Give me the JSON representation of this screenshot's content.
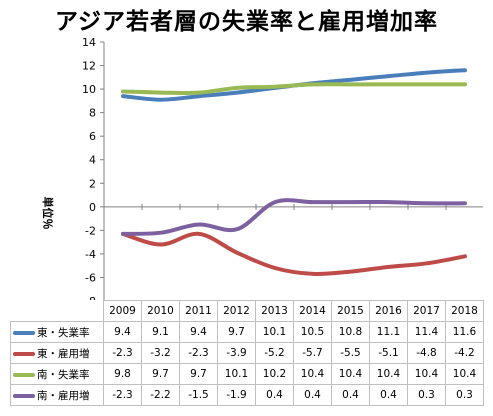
{
  "chart_data": {
    "type": "line",
    "title": "アジア若者層の失業率と雇用増加率",
    "ylabel": "単位％",
    "xlabel": "",
    "ylim": [
      -8,
      14
    ],
    "yticks": [
      14,
      12,
      10,
      8,
      6,
      4,
      2,
      0,
      -2,
      -4,
      -6,
      -8
    ],
    "categories": [
      "2009",
      "2010",
      "2011",
      "2012",
      "2013",
      "2014",
      "2015",
      "2016",
      "2017",
      "2018"
    ],
    "grid": false,
    "legend": "data table below chart",
    "series": [
      {
        "name": "東・失業率",
        "color": "#4a7ebb",
        "values": [
          9.4,
          9.1,
          9.4,
          9.7,
          10.1,
          10.5,
          10.8,
          11.1,
          11.4,
          11.6
        ]
      },
      {
        "name": "東・雇用増",
        "color": "#be4b48",
        "values": [
          -2.3,
          -3.2,
          -2.3,
          -3.9,
          -5.2,
          -5.7,
          -5.5,
          -5.1,
          -4.8,
          -4.2
        ]
      },
      {
        "name": "南・失業率",
        "color": "#98b954",
        "values": [
          9.8,
          9.7,
          9.7,
          10.1,
          10.2,
          10.4,
          10.4,
          10.4,
          10.4,
          10.4
        ]
      },
      {
        "name": "南・雇用増",
        "color": "#7d60a0",
        "values": [
          -2.3,
          -2.2,
          -1.5,
          -1.9,
          0.4,
          0.4,
          0.4,
          0.4,
          0.3,
          0.3
        ]
      }
    ]
  }
}
